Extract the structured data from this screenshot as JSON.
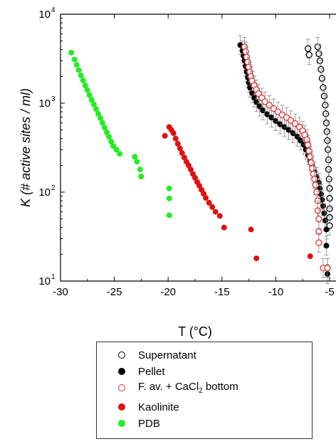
{
  "chart_data": {
    "type": "scatter",
    "title": "",
    "xlabel": "T (°C)",
    "ylabel": "K (# active sites / ml)",
    "xlim": [
      -30,
      -5
    ],
    "ylim": [
      10,
      10000
    ],
    "yscale": "log",
    "xticks": [
      "-30",
      "-25",
      "-20",
      "-15",
      "-10",
      "-5"
    ],
    "yticks": [
      {
        "base": "10",
        "exp": "1"
      },
      {
        "base": "10",
        "exp": "2"
      },
      {
        "base": "10",
        "exp": "3"
      },
      {
        "base": "10",
        "exp": "4"
      }
    ],
    "legend_position": "below plot",
    "series": [
      {
        "name": "Supernatant",
        "marker": "open-circle",
        "color": "#000000",
        "error_bars": true,
        "points": [
          [
            -7.0,
            4100
          ],
          [
            -6.9,
            3500
          ],
          [
            -6.1,
            4300
          ],
          [
            -6.0,
            3600
          ],
          [
            -5.9,
            3000
          ],
          [
            -5.8,
            2400
          ],
          [
            -5.7,
            1900
          ],
          [
            -5.6,
            1500
          ],
          [
            -5.5,
            1200
          ],
          [
            -5.4,
            950
          ],
          [
            -5.35,
            760
          ],
          [
            -5.3,
            600
          ],
          [
            -5.25,
            480
          ],
          [
            -5.2,
            380
          ],
          [
            -5.15,
            300
          ],
          [
            -5.1,
            230
          ],
          [
            -5.1,
            180
          ],
          [
            -5.05,
            140
          ],
          [
            -5.0,
            110
          ],
          [
            -5.0,
            85
          ],
          [
            -5.0,
            65
          ],
          [
            -5.0,
            52
          ],
          [
            -5.0,
            42
          ],
          [
            -5.2,
            14
          ]
        ]
      },
      {
        "name": "Pellet",
        "marker": "filled-circle",
        "color": "#000000",
        "error_bars": true,
        "points": [
          [
            -13.3,
            4500
          ],
          [
            -13.1,
            3900
          ],
          [
            -13.0,
            3400
          ],
          [
            -12.9,
            3000
          ],
          [
            -12.8,
            2600
          ],
          [
            -12.7,
            2250
          ],
          [
            -12.6,
            1950
          ],
          [
            -12.5,
            1700
          ],
          [
            -12.4,
            1500
          ],
          [
            -12.2,
            1300
          ],
          [
            -12.0,
            1150
          ],
          [
            -11.8,
            1030
          ],
          [
            -11.5,
            920
          ],
          [
            -11.2,
            830
          ],
          [
            -10.8,
            750
          ],
          [
            -10.4,
            690
          ],
          [
            -10.0,
            630
          ],
          [
            -9.6,
            580
          ],
          [
            -9.2,
            540
          ],
          [
            -8.8,
            500
          ],
          [
            -8.4,
            460
          ],
          [
            -8.0,
            420
          ],
          [
            -7.7,
            380
          ],
          [
            -7.4,
            340
          ],
          [
            -7.2,
            300
          ],
          [
            -7.0,
            260
          ],
          [
            -6.8,
            225
          ],
          [
            -6.6,
            195
          ],
          [
            -6.4,
            170
          ],
          [
            -6.2,
            148
          ],
          [
            -6.0,
            128
          ],
          [
            -5.9,
            110
          ],
          [
            -5.8,
            95
          ],
          [
            -5.7,
            82
          ],
          [
            -5.6,
            70
          ],
          [
            -5.5,
            58
          ],
          [
            -5.4,
            48
          ],
          [
            -5.3,
            38
          ],
          [
            -5.3,
            25
          ],
          [
            -5.2,
            12
          ]
        ]
      },
      {
        "name": "F. av. + CaCl2 bottom",
        "marker": "open-circle",
        "color": "#e03030",
        "error_bars": true,
        "points": [
          [
            -12.9,
            4300
          ],
          [
            -12.8,
            3800
          ],
          [
            -12.7,
            3300
          ],
          [
            -12.6,
            2900
          ],
          [
            -12.5,
            2550
          ],
          [
            -12.4,
            2250
          ],
          [
            -12.3,
            2000
          ],
          [
            -12.2,
            1780
          ],
          [
            -12.0,
            1580
          ],
          [
            -11.8,
            1420
          ],
          [
            -11.6,
            1280
          ],
          [
            -11.3,
            1150
          ],
          [
            -11.0,
            1040
          ],
          [
            -10.6,
            950
          ],
          [
            -10.2,
            870
          ],
          [
            -9.8,
            800
          ],
          [
            -9.4,
            740
          ],
          [
            -9.0,
            690
          ],
          [
            -8.6,
            640
          ],
          [
            -8.2,
            590
          ],
          [
            -7.8,
            540
          ],
          [
            -7.5,
            490
          ],
          [
            -7.3,
            440
          ],
          [
            -7.1,
            390
          ],
          [
            -7.0,
            340
          ],
          [
            -6.9,
            290
          ],
          [
            -6.8,
            250
          ],
          [
            -6.7,
            215
          ],
          [
            -6.6,
            185
          ],
          [
            -6.5,
            160
          ],
          [
            -6.4,
            140
          ],
          [
            -6.3,
            120
          ],
          [
            -6.2,
            100
          ],
          [
            -6.1,
            80
          ],
          [
            -6.1,
            62
          ],
          [
            -6.0,
            50
          ],
          [
            -6.0,
            36
          ],
          [
            -6.0,
            27
          ],
          [
            -5.6,
            14
          ],
          [
            -5.2,
            14
          ]
        ]
      },
      {
        "name": "Kaolinite",
        "marker": "filled-circle",
        "color": "#e01010",
        "error_bars": false,
        "points": [
          [
            -20.3,
            430
          ],
          [
            -19.9,
            540
          ],
          [
            -19.7,
            500
          ],
          [
            -19.5,
            460
          ],
          [
            -19.3,
            400
          ],
          [
            -19.1,
            350
          ],
          [
            -18.9,
            310
          ],
          [
            -18.7,
            275
          ],
          [
            -18.5,
            245
          ],
          [
            -18.3,
            220
          ],
          [
            -18.1,
            200
          ],
          [
            -17.9,
            180
          ],
          [
            -17.7,
            160
          ],
          [
            -17.5,
            145
          ],
          [
            -17.3,
            130
          ],
          [
            -17.1,
            118
          ],
          [
            -16.9,
            106
          ],
          [
            -16.7,
            96
          ],
          [
            -16.5,
            86
          ],
          [
            -16.2,
            76
          ],
          [
            -15.9,
            68
          ],
          [
            -15.6,
            60
          ],
          [
            -15.2,
            54
          ],
          [
            -14.8,
            40
          ],
          [
            -12.3,
            38
          ],
          [
            -11.8,
            18
          ],
          [
            -6.8,
            19
          ]
        ]
      },
      {
        "name": "PDB",
        "marker": "filled-circle",
        "color": "#22ee22",
        "error_bars": false,
        "points": [
          [
            -29.0,
            3700
          ],
          [
            -28.7,
            3100
          ],
          [
            -28.5,
            2700
          ],
          [
            -28.3,
            2350
          ],
          [
            -28.1,
            2050
          ],
          [
            -27.9,
            1800
          ],
          [
            -27.7,
            1580
          ],
          [
            -27.5,
            1400
          ],
          [
            -27.3,
            1230
          ],
          [
            -27.1,
            1090
          ],
          [
            -26.9,
            970
          ],
          [
            -26.7,
            860
          ],
          [
            -26.5,
            760
          ],
          [
            -26.3,
            680
          ],
          [
            -26.1,
            600
          ],
          [
            -25.9,
            530
          ],
          [
            -25.7,
            470
          ],
          [
            -25.5,
            420
          ],
          [
            -25.3,
            370
          ],
          [
            -25.1,
            330
          ],
          [
            -24.8,
            300
          ],
          [
            -24.5,
            270
          ],
          [
            -23.1,
            250
          ],
          [
            -22.9,
            220
          ],
          [
            -22.6,
            180
          ],
          [
            -22.5,
            150
          ],
          [
            -19.9,
            110
          ],
          [
            -19.9,
            85
          ],
          [
            -19.9,
            55
          ]
        ]
      }
    ]
  },
  "legend": {
    "items": [
      {
        "label": "Supernatant",
        "sub": "",
        "suffix": ""
      },
      {
        "label": "Pellet",
        "sub": "",
        "suffix": ""
      },
      {
        "label": "F. av. + CaCl",
        "sub": "2",
        "suffix": " bottom"
      },
      {
        "label": "Kaolinite",
        "sub": "",
        "suffix": ""
      },
      {
        "label": "PDB",
        "sub": "",
        "suffix": ""
      }
    ]
  }
}
